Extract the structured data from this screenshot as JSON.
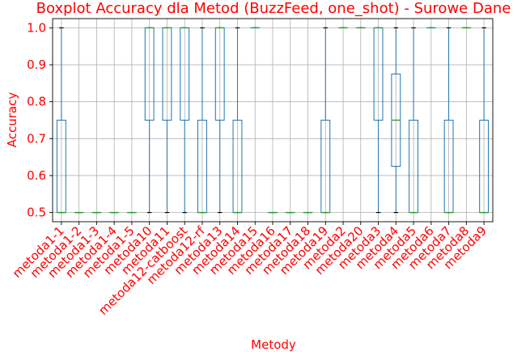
{
  "chart_data": {
    "type": "boxplot",
    "title": "Boxplot Accuracy dla Metod (BuzzFeed, one_shot) - Surowe Dane",
    "xlabel": "Metody",
    "ylabel": "Accuracy",
    "ylim": [
      0.475,
      1.025
    ],
    "yticks": [
      "0.5",
      "0.6",
      "0.7",
      "0.8",
      "0.9",
      "1.0"
    ],
    "grid": true,
    "colors": {
      "box": "#1f77b4",
      "median": "#2ca02c",
      "text": "#ff0000"
    },
    "categories": [
      "metoda1-1",
      "metoda1-2",
      "metoda1-3",
      "metoda1-4",
      "metoda1-5",
      "metoda10",
      "metoda11",
      "metoda12-catboost",
      "metoda12-rf",
      "metoda13",
      "metoda14",
      "metoda15",
      "metoda16",
      "metoda17",
      "metoda18",
      "metoda19",
      "metoda2",
      "metoda20",
      "metoda3",
      "metoda4",
      "metoda5",
      "metoda6",
      "metoda7",
      "metoda8",
      "metoda9"
    ],
    "series": [
      {
        "min": 0.5,
        "q1": 0.5,
        "median": 0.5,
        "q3": 0.75,
        "max": 1.0
      },
      {
        "min": 0.5,
        "q1": 0.5,
        "median": 0.5,
        "q3": 0.5,
        "max": 0.5
      },
      {
        "min": 0.5,
        "q1": 0.5,
        "median": 0.5,
        "q3": 0.5,
        "max": 0.5
      },
      {
        "min": 0.5,
        "q1": 0.5,
        "median": 0.5,
        "q3": 0.5,
        "max": 0.5
      },
      {
        "min": 0.5,
        "q1": 0.5,
        "median": 0.5,
        "q3": 0.5,
        "max": 0.5
      },
      {
        "min": 0.5,
        "q1": 0.75,
        "median": 1.0,
        "q3": 1.0,
        "max": 1.0
      },
      {
        "min": 0.5,
        "q1": 0.75,
        "median": 1.0,
        "q3": 1.0,
        "max": 1.0
      },
      {
        "min": 0.5,
        "q1": 0.75,
        "median": 1.0,
        "q3": 1.0,
        "max": 1.0
      },
      {
        "min": 0.5,
        "q1": 0.5,
        "median": 0.5,
        "q3": 0.75,
        "max": 1.0
      },
      {
        "min": 0.5,
        "q1": 0.75,
        "median": 1.0,
        "q3": 1.0,
        "max": 1.0
      },
      {
        "min": 0.5,
        "q1": 0.5,
        "median": 0.5,
        "q3": 0.75,
        "max": 1.0
      },
      {
        "min": 1.0,
        "q1": 1.0,
        "median": 1.0,
        "q3": 1.0,
        "max": 1.0
      },
      {
        "min": 0.5,
        "q1": 0.5,
        "median": 0.5,
        "q3": 0.5,
        "max": 0.5
      },
      {
        "min": 0.5,
        "q1": 0.5,
        "median": 0.5,
        "q3": 0.5,
        "max": 0.5
      },
      {
        "min": 0.5,
        "q1": 0.5,
        "median": 0.5,
        "q3": 0.5,
        "max": 0.5
      },
      {
        "min": 0.5,
        "q1": 0.5,
        "median": 0.5,
        "q3": 0.75,
        "max": 1.0
      },
      {
        "min": 1.0,
        "q1": 1.0,
        "median": 1.0,
        "q3": 1.0,
        "max": 1.0
      },
      {
        "min": 1.0,
        "q1": 1.0,
        "median": 1.0,
        "q3": 1.0,
        "max": 1.0
      },
      {
        "min": 0.5,
        "q1": 0.75,
        "median": 1.0,
        "q3": 1.0,
        "max": 1.0
      },
      {
        "min": 0.5,
        "q1": 0.625,
        "median": 0.75,
        "q3": 0.875,
        "max": 1.0
      },
      {
        "min": 0.5,
        "q1": 0.5,
        "median": 0.5,
        "q3": 0.75,
        "max": 1.0
      },
      {
        "min": 1.0,
        "q1": 1.0,
        "median": 1.0,
        "q3": 1.0,
        "max": 1.0
      },
      {
        "min": 0.5,
        "q1": 0.5,
        "median": 0.5,
        "q3": 0.75,
        "max": 1.0
      },
      {
        "min": 1.0,
        "q1": 1.0,
        "median": 1.0,
        "q3": 1.0,
        "max": 1.0
      },
      {
        "min": 0.5,
        "q1": 0.5,
        "median": 0.5,
        "q3": 0.75,
        "max": 1.0
      }
    ]
  }
}
